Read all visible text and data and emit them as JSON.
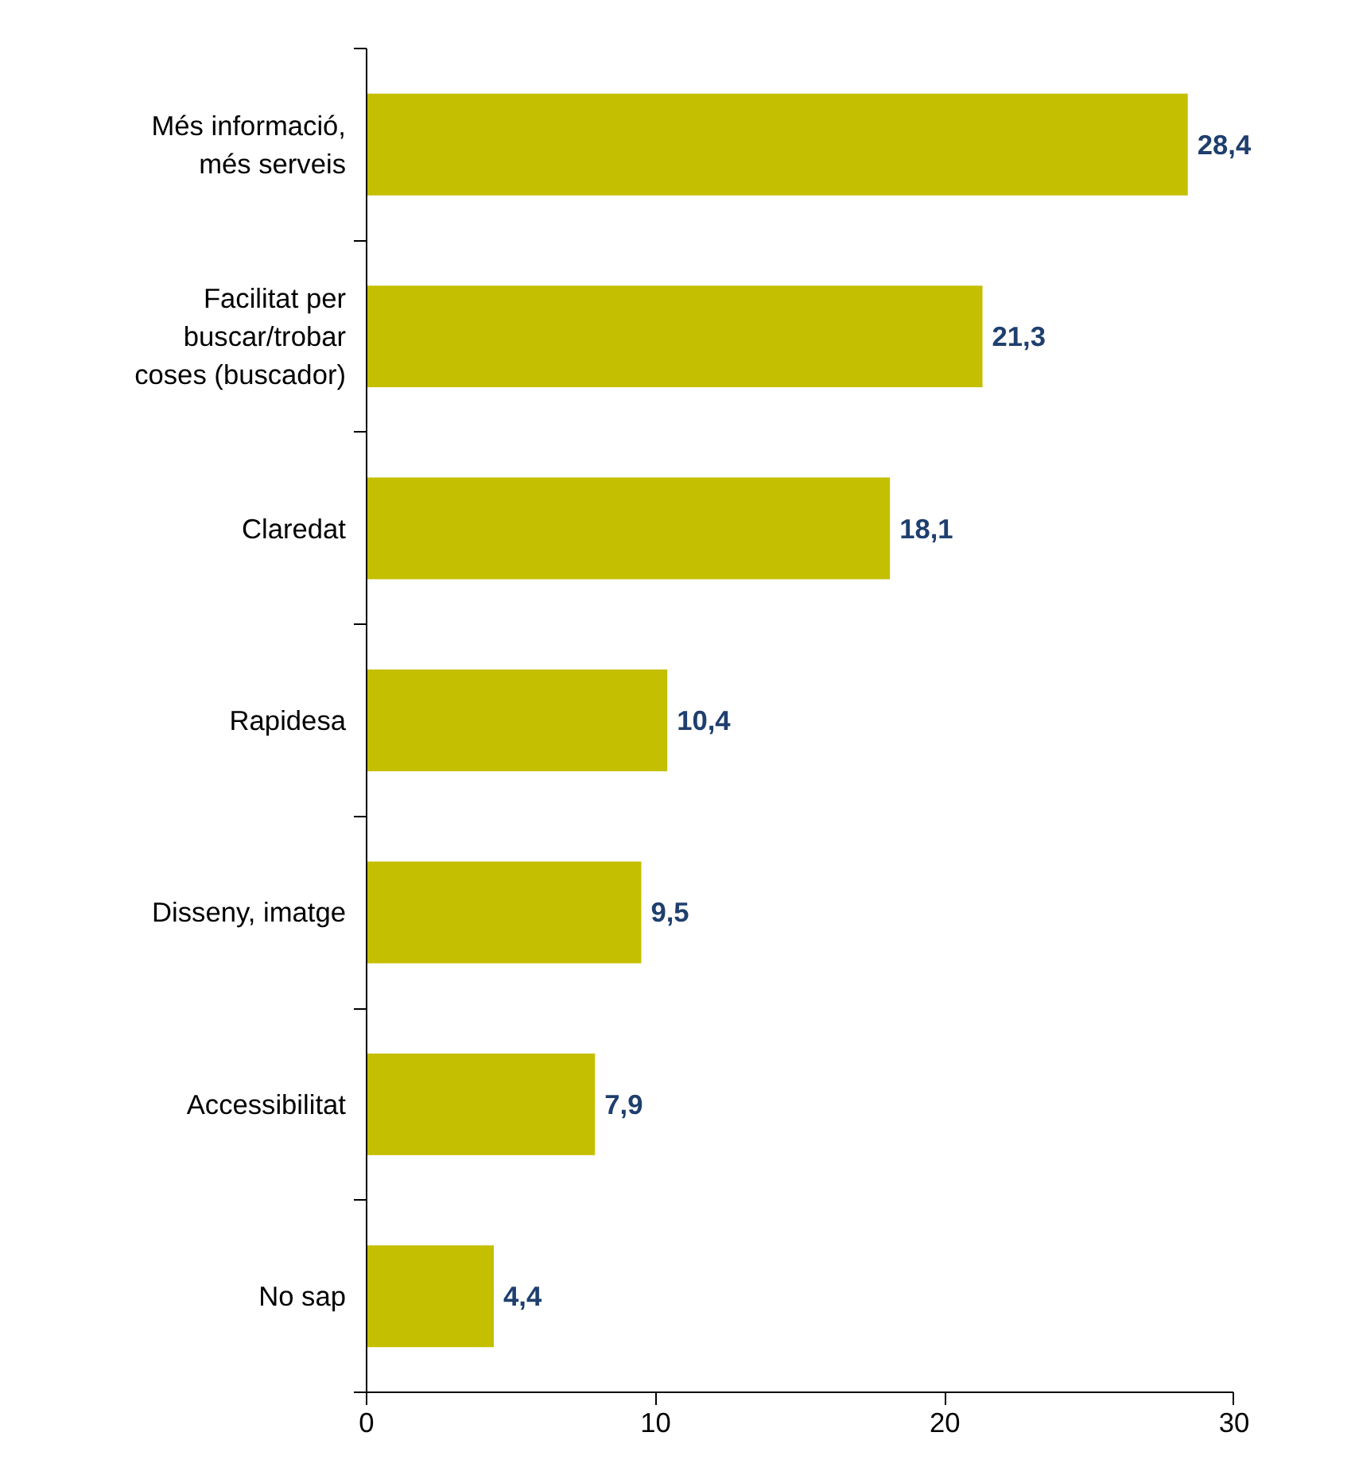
{
  "chart_data": {
    "type": "bar",
    "orientation": "horizontal",
    "categories": [
      "Més informació,\nmés serveis",
      "Facilitat per\nbuscar/trobar\ncoses (buscador)",
      "Claredat",
      "Rapidesa",
      "Disseny, imatge",
      "Accessibilitat",
      "No sap"
    ],
    "values": [
      28.4,
      21.3,
      18.1,
      10.4,
      9.5,
      7.9,
      4.4
    ],
    "value_labels": [
      "28,4",
      "21,3",
      "18,1",
      "10,4",
      "9,5",
      "7,9",
      "4,4"
    ],
    "color": "#c4bf00",
    "xlim": [
      0,
      30
    ],
    "xticks": [
      0,
      10,
      20,
      30
    ],
    "grid": false
  }
}
